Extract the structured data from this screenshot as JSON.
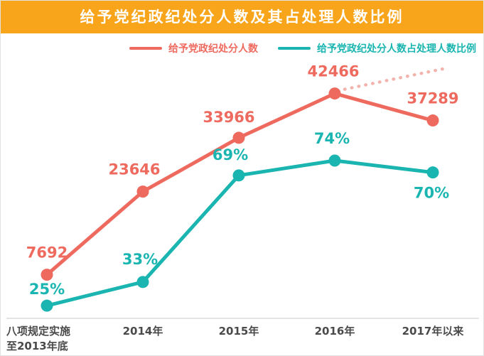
{
  "title": "给予党纪政纪处分人数及其占处理人数比例",
  "legend": [
    {
      "label": "给予党政纪处分人数",
      "color": "#EE6A5F"
    },
    {
      "label": "给予党政纪处分人数占处理人数比例",
      "color": "#1AB5B0"
    }
  ],
  "colors": {
    "banner": "#F8A51B",
    "red_series": "#EE6A5F",
    "teal_series": "#1AB5B0",
    "projection_dotted": "#F2B3AC",
    "axis_line": "#DCDCDC",
    "tick_label": "#4A4A4A"
  },
  "chart_data": {
    "type": "line",
    "title": "给予党纪政纪处分人数及其占处理人数比例",
    "categories": [
      "八项规定实施\n至2013年底",
      "2014年",
      "2015年",
      "2016年",
      "2017年以来"
    ],
    "series": [
      {
        "name": "给予党政纪处分人数",
        "color": "#EE6A5F",
        "values": [
          7692,
          23646,
          33966,
          42466,
          37289
        ],
        "labels": [
          "7692",
          "23646",
          "33966",
          "42466",
          "37289"
        ]
      },
      {
        "name": "给予党政纪处分人数占处理人数比例",
        "color": "#1AB5B0",
        "unit": "%",
        "values": [
          25,
          33,
          69,
          74,
          70
        ],
        "labels": [
          "25%",
          "33%",
          "69%",
          "74%",
          "70%"
        ]
      }
    ],
    "annotations": [
      {
        "type": "dotted-projection",
        "from_category": "2016年",
        "series": "给予党政纪处分人数",
        "direction": "up-right",
        "color": "#F2B3AC"
      }
    ],
    "legend_position": "top",
    "grid": false,
    "xlabel": "",
    "ylabel": ""
  }
}
